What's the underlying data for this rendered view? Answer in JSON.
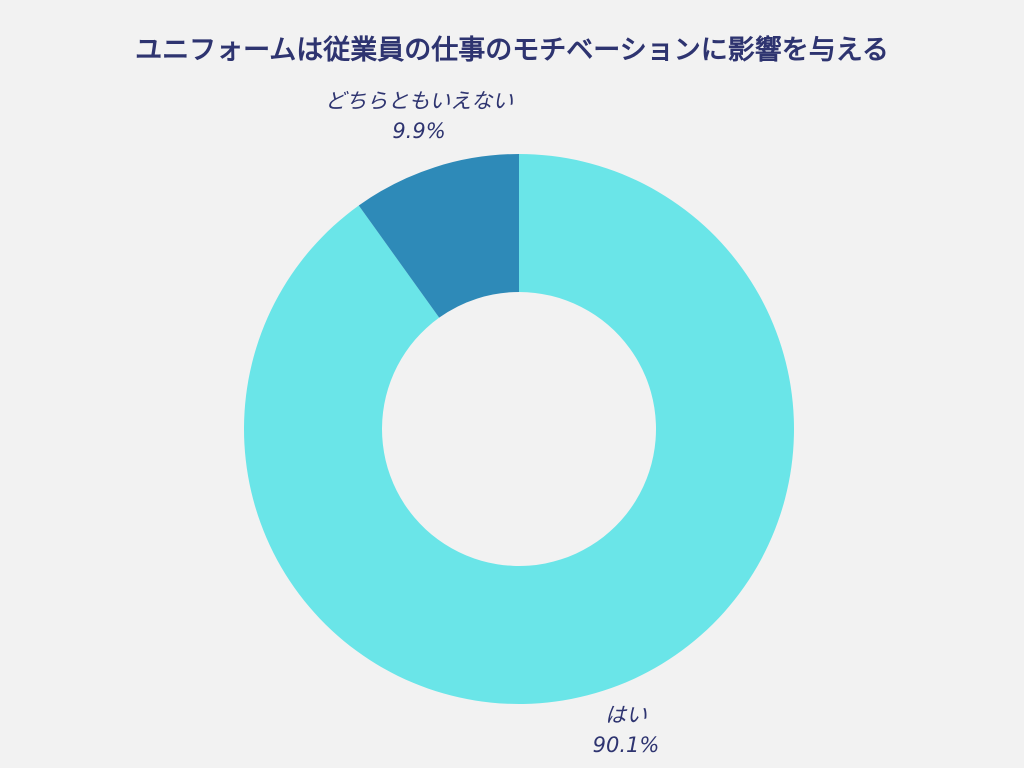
{
  "chart_data": {
    "type": "pie",
    "donut": true,
    "title": "ユニフォームは従業員の仕事のモチベーションに影響を与える",
    "categories": [
      "はい",
      "どちらともいえない"
    ],
    "values": [
      90.1,
      9.9
    ],
    "value_labels": [
      "90.1%",
      "9.9%"
    ],
    "colors": [
      "#6ae5e8",
      "#2e8ab8"
    ],
    "start": "top",
    "direction": "clockwise",
    "legend": "none"
  },
  "colors": {
    "background": "#f2f2f2",
    "text": "#2e3470"
  }
}
